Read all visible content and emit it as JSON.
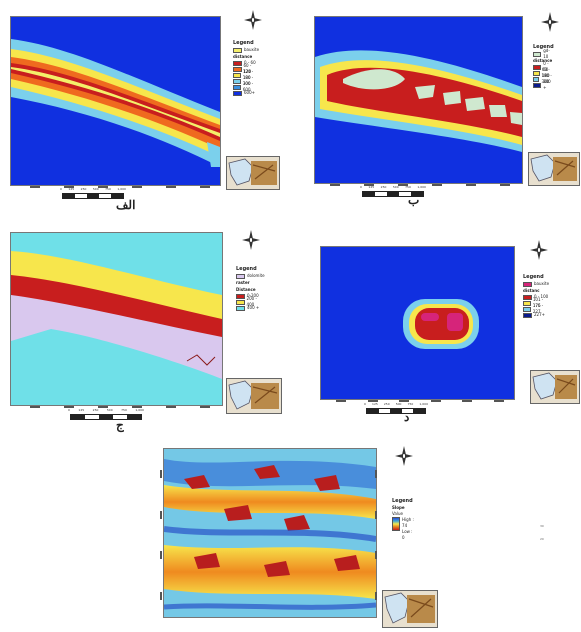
{
  "panels": {
    "alef": {
      "caption": "الف",
      "legend": {
        "title": "Legend",
        "items": [
          {
            "label": "bauxite",
            "color": "#f4ef6a"
          },
          {
            "section": "distance"
          },
          {
            "label": "0 - 60",
            "color": "#c81e1e"
          },
          {
            "label": "60 - 120",
            "color": "#ef6a1f"
          },
          {
            "label": "120 - 180",
            "color": "#f7e64c"
          },
          {
            "label": "180 - 300",
            "color": "#7bd0ec"
          },
          {
            "label": "300 - 600",
            "color": "#3a8fe0"
          },
          {
            "label": "600+",
            "color": "#1030e0"
          }
        ]
      }
    },
    "be": {
      "caption": "ب",
      "legend": {
        "title": "Legend",
        "items": [
          {
            "label": "gd-10",
            "color": "#cfe8cf"
          },
          {
            "section": "distance"
          },
          {
            "label": "0 - 60",
            "color": "#c81e1e"
          },
          {
            "label": "60 - 180",
            "color": "#f7e64c"
          },
          {
            "label": "180 - 300",
            "color": "#7bd0ec"
          },
          {
            "label": "300 +",
            "color": "#0a1a8c"
          }
        ]
      }
    },
    "jim": {
      "caption": "ج",
      "legend": {
        "title": "Legend",
        "items": [
          {
            "label": "dolomite",
            "color": "#d9c8ee"
          },
          {
            "section": "raster"
          },
          {
            "section": "Distance"
          },
          {
            "label": "0-200",
            "color": "#c81e1e"
          },
          {
            "label": "200 - 400",
            "color": "#f7e64c"
          },
          {
            "label": "400 +",
            "color": "#6fe0e8"
          }
        ]
      }
    },
    "dal": {
      "caption": "د",
      "legend": {
        "title": "Legend",
        "items": [
          {
            "label": "bauxite",
            "color": "#d6247a"
          },
          {
            "section": "distanc"
          },
          {
            "label": "0 - 100",
            "color": "#c81e1e"
          },
          {
            "label": "101 - 175",
            "color": "#f7e64c"
          },
          {
            "label": "176 - 227",
            "color": "#7bd0ec"
          },
          {
            "label": "227+",
            "color": "#0a1a8c"
          }
        ]
      }
    },
    "slope": {
      "legend": {
        "title": "Legend",
        "section": "Slope",
        "value": "Value",
        "high": "High : 74",
        "low": "Low : 0"
      },
      "side_marks": [
        "30",
        "20"
      ]
    }
  },
  "scalebar_labels": [
    "0",
    "125",
    "250",
    "500",
    "750",
    "1,000"
  ],
  "icons": [
    "north-arrow-icon",
    "location-inset-map"
  ],
  "colors": {
    "deep_blue": "#1030e0",
    "navy": "#0a1a8c",
    "red": "#c81e1e",
    "orange": "#ef6a1f",
    "yellow": "#f7e64c",
    "cyan": "#6fe0e8",
    "light_blue": "#7bd0ec",
    "lavender": "#d9c8ee"
  }
}
